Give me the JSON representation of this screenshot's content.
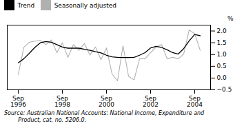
{
  "chart_data": {
    "type": "line",
    "categories": [
      "Sep\n1996",
      null,
      null,
      null,
      null,
      null,
      null,
      null,
      "Sep\n1998",
      null,
      null,
      null,
      null,
      null,
      null,
      null,
      "Sep\n2000",
      null,
      null,
      null,
      null,
      null,
      null,
      null,
      "Sep\n2002",
      null,
      null,
      null,
      null,
      null,
      null,
      null,
      "Sep\n2004",
      null
    ],
    "series": [
      {
        "name": "Trend",
        "color": "#000000",
        "values": [
          0.65,
          0.82,
          1.05,
          1.3,
          1.5,
          1.55,
          1.52,
          1.42,
          1.32,
          1.27,
          1.27,
          1.27,
          1.22,
          1.18,
          1.12,
          1.07,
          0.97,
          0.9,
          0.88,
          0.87,
          0.87,
          0.88,
          0.97,
          1.08,
          1.28,
          1.35,
          1.3,
          1.2,
          1.08,
          1.02,
          1.25,
          1.58,
          1.85,
          1.8
        ]
      },
      {
        "name": "Seasonally adjusted",
        "color": "#b0b0b0",
        "values": [
          0.15,
          1.3,
          1.52,
          1.57,
          1.6,
          1.42,
          1.62,
          1.08,
          1.5,
          0.88,
          1.42,
          1.18,
          1.47,
          0.98,
          1.32,
          0.78,
          1.28,
          0.18,
          -0.12,
          1.38,
          0.08,
          -0.08,
          0.82,
          0.82,
          1.08,
          1.32,
          1.42,
          0.82,
          0.88,
          0.82,
          1.02,
          2.05,
          1.88,
          1.18
        ]
      }
    ],
    "ylabel": "%",
    "ylim": [
      -0.5,
      2.25
    ],
    "yticks": [
      {
        "value": -0.5,
        "label": "−0.5"
      },
      {
        "value": 0.0,
        "label": "0.0"
      },
      {
        "value": 0.5,
        "label": "0.5"
      },
      {
        "value": 1.0,
        "label": "1.0"
      },
      {
        "value": 1.5,
        "label": "1.5"
      },
      {
        "value": 2.0,
        "label": "2.0"
      }
    ],
    "grid": false,
    "legend": "upper left",
    "annotations": [
      "Source: Australian National Accounts: National Income, Expenditure and",
      "        Product, cat. no. 5206.0."
    ]
  }
}
